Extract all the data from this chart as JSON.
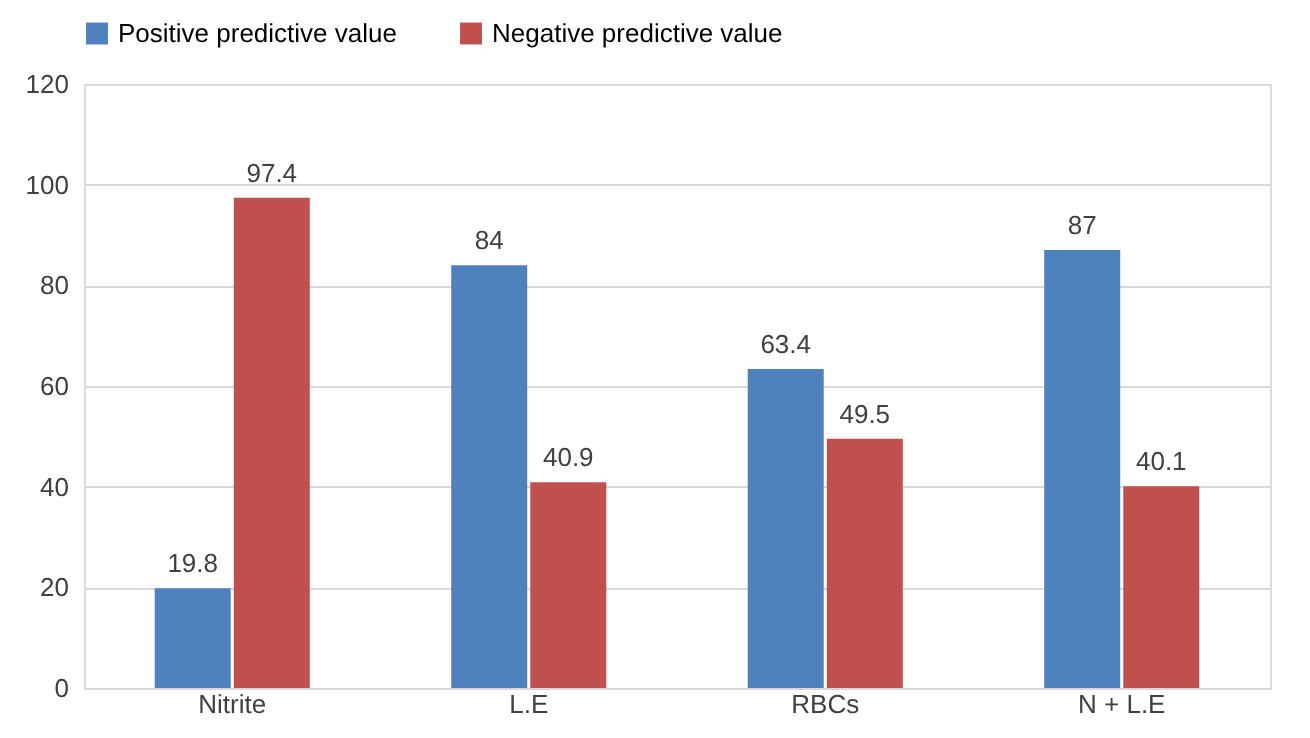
{
  "chart_data": {
    "type": "bar",
    "categories": [
      "Nitrite",
      "L.E",
      "RBCs",
      "N + L.E"
    ],
    "series": [
      {
        "name": "Positive predictive value",
        "color": "#4f81bd",
        "values": [
          19.8,
          84,
          63.4,
          87
        ]
      },
      {
        "name": "Negative predictive value",
        "color": "#c0504d",
        "values": [
          97.4,
          40.9,
          49.5,
          40.1
        ]
      }
    ],
    "ylim": [
      0,
      120
    ],
    "yticks": [
      0,
      20,
      40,
      60,
      80,
      100,
      120
    ],
    "grid": "y",
    "legend": "top",
    "data_labels": true
  }
}
